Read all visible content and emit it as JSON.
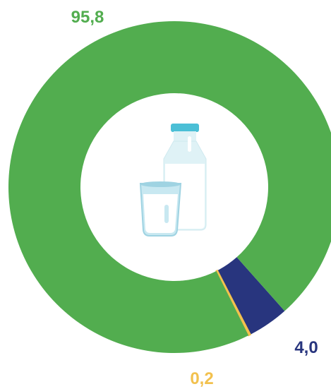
{
  "chart_data": {
    "type": "pie",
    "variant": "donut",
    "slices": [
      {
        "label": "95,8",
        "value": 95.8,
        "color": "#52ad4f"
      },
      {
        "label": "4,0",
        "value": 4.0,
        "color": "#28357e"
      },
      {
        "label": "0,2",
        "value": 0.2,
        "color": "#f2c14e"
      }
    ],
    "label_colors": [
      "#52ad4f",
      "#28357e",
      "#f2c14e"
    ],
    "center_icon": "milk-bottle-and-glass-icon",
    "legend": "none"
  }
}
